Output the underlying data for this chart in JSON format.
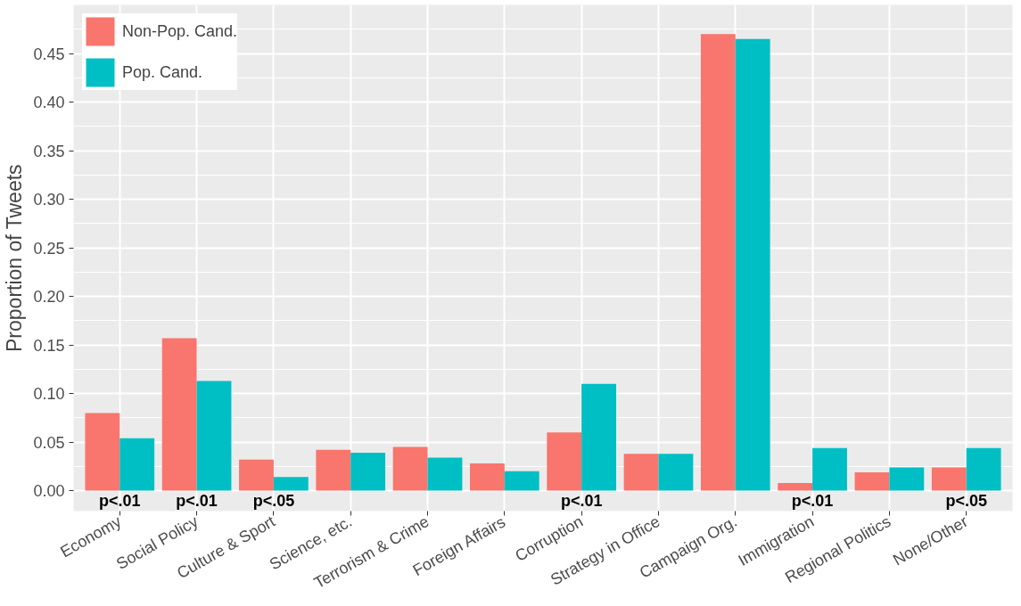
{
  "chart_data": {
    "type": "bar",
    "ylabel": "Proportion of Tweets",
    "categories": [
      "Economy",
      "Social Policy",
      "Culture & Sport",
      "Science, etc.",
      "Terrorism & Crime",
      "Foreign Affairs",
      "Corruption",
      "Strategy in Office",
      "Campaign Org.",
      "Immigration",
      "Regional Politics",
      "None/Other"
    ],
    "series": [
      {
        "name": "Non-Pop. Cand.",
        "color": "#f8766d",
        "values": [
          0.08,
          0.157,
          0.032,
          0.042,
          0.045,
          0.028,
          0.06,
          0.038,
          0.47,
          0.008,
          0.019,
          0.024
        ]
      },
      {
        "name": "Pop. Cand.",
        "color": "#00bfc4",
        "values": [
          0.054,
          0.113,
          0.014,
          0.039,
          0.034,
          0.02,
          0.11,
          0.038,
          0.465,
          0.044,
          0.024,
          0.044
        ]
      }
    ],
    "annotations": [
      {
        "text": "p<.01",
        "x": "Economy",
        "y": 0
      },
      {
        "text": "p<.01",
        "x": "Social Policy",
        "y": 0
      },
      {
        "text": "p<.05",
        "x": "Culture & Sport",
        "y": 0
      },
      {
        "text": "p<.01",
        "x": "Corruption",
        "y": 0
      },
      {
        "text": "p<.01",
        "x": "Immigration",
        "y": 0
      },
      {
        "text": "p<.05",
        "x": "None/Other",
        "y": 0
      }
    ],
    "ylim": [
      -0.021,
      0.5
    ],
    "yticks": [
      {
        "value": 0,
        "label": "0.00"
      },
      {
        "value": 0.05,
        "label": "0.05"
      },
      {
        "value": 0.1,
        "label": "0.10"
      },
      {
        "value": 0.15,
        "label": "0.15"
      },
      {
        "value": 0.2,
        "label": "0.20"
      },
      {
        "value": 0.25,
        "label": "0.25"
      },
      {
        "value": 0.3,
        "label": "0.30"
      },
      {
        "value": 0.35,
        "label": "0.35"
      },
      {
        "value": 0.4,
        "label": "0.40"
      },
      {
        "value": 0.45,
        "label": "0.45"
      }
    ],
    "grid": true,
    "legend": "top left"
  }
}
